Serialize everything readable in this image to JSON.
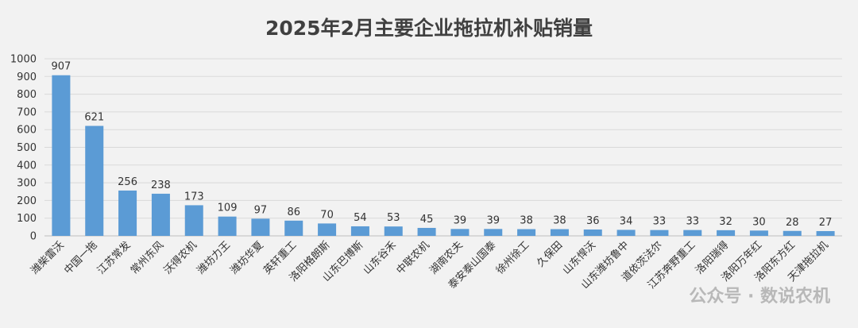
{
  "chart_data": {
    "type": "bar",
    "title": "2025年2月主要企业拖拉机补贴销量",
    "categories": [
      "潍柴雷沃",
      "中国一拖",
      "江苏常发",
      "常州东风",
      "沃得农机",
      "潍坊力王",
      "潍坊华夏",
      "英轩重工",
      "洛阳格朗斯",
      "山东巴博斯",
      "山东谷禾",
      "中联农机",
      "湖南农夫",
      "泰安泰山国泰",
      "徐州徐工",
      "久保田",
      "山东悍沃",
      "山东潍坊鲁中",
      "道依茨法尔",
      "江苏奔野重工",
      "洛阳瑞得",
      "洛阳万年红",
      "洛阳东方红",
      "天津拖拉机"
    ],
    "values": [
      907,
      621,
      256,
      238,
      173,
      109,
      97,
      86,
      70,
      54,
      53,
      45,
      39,
      39,
      38,
      38,
      36,
      34,
      33,
      33,
      32,
      30,
      28,
      27
    ],
    "ylim": [
      0,
      1000
    ],
    "yticks": [
      0,
      100,
      200,
      300,
      400,
      500,
      600,
      700,
      800,
      900,
      1000
    ],
    "grid": true,
    "legend": "none",
    "bar_color": "#5b9bd5"
  },
  "watermark": {
    "text": "公众号 · 数说农机"
  }
}
